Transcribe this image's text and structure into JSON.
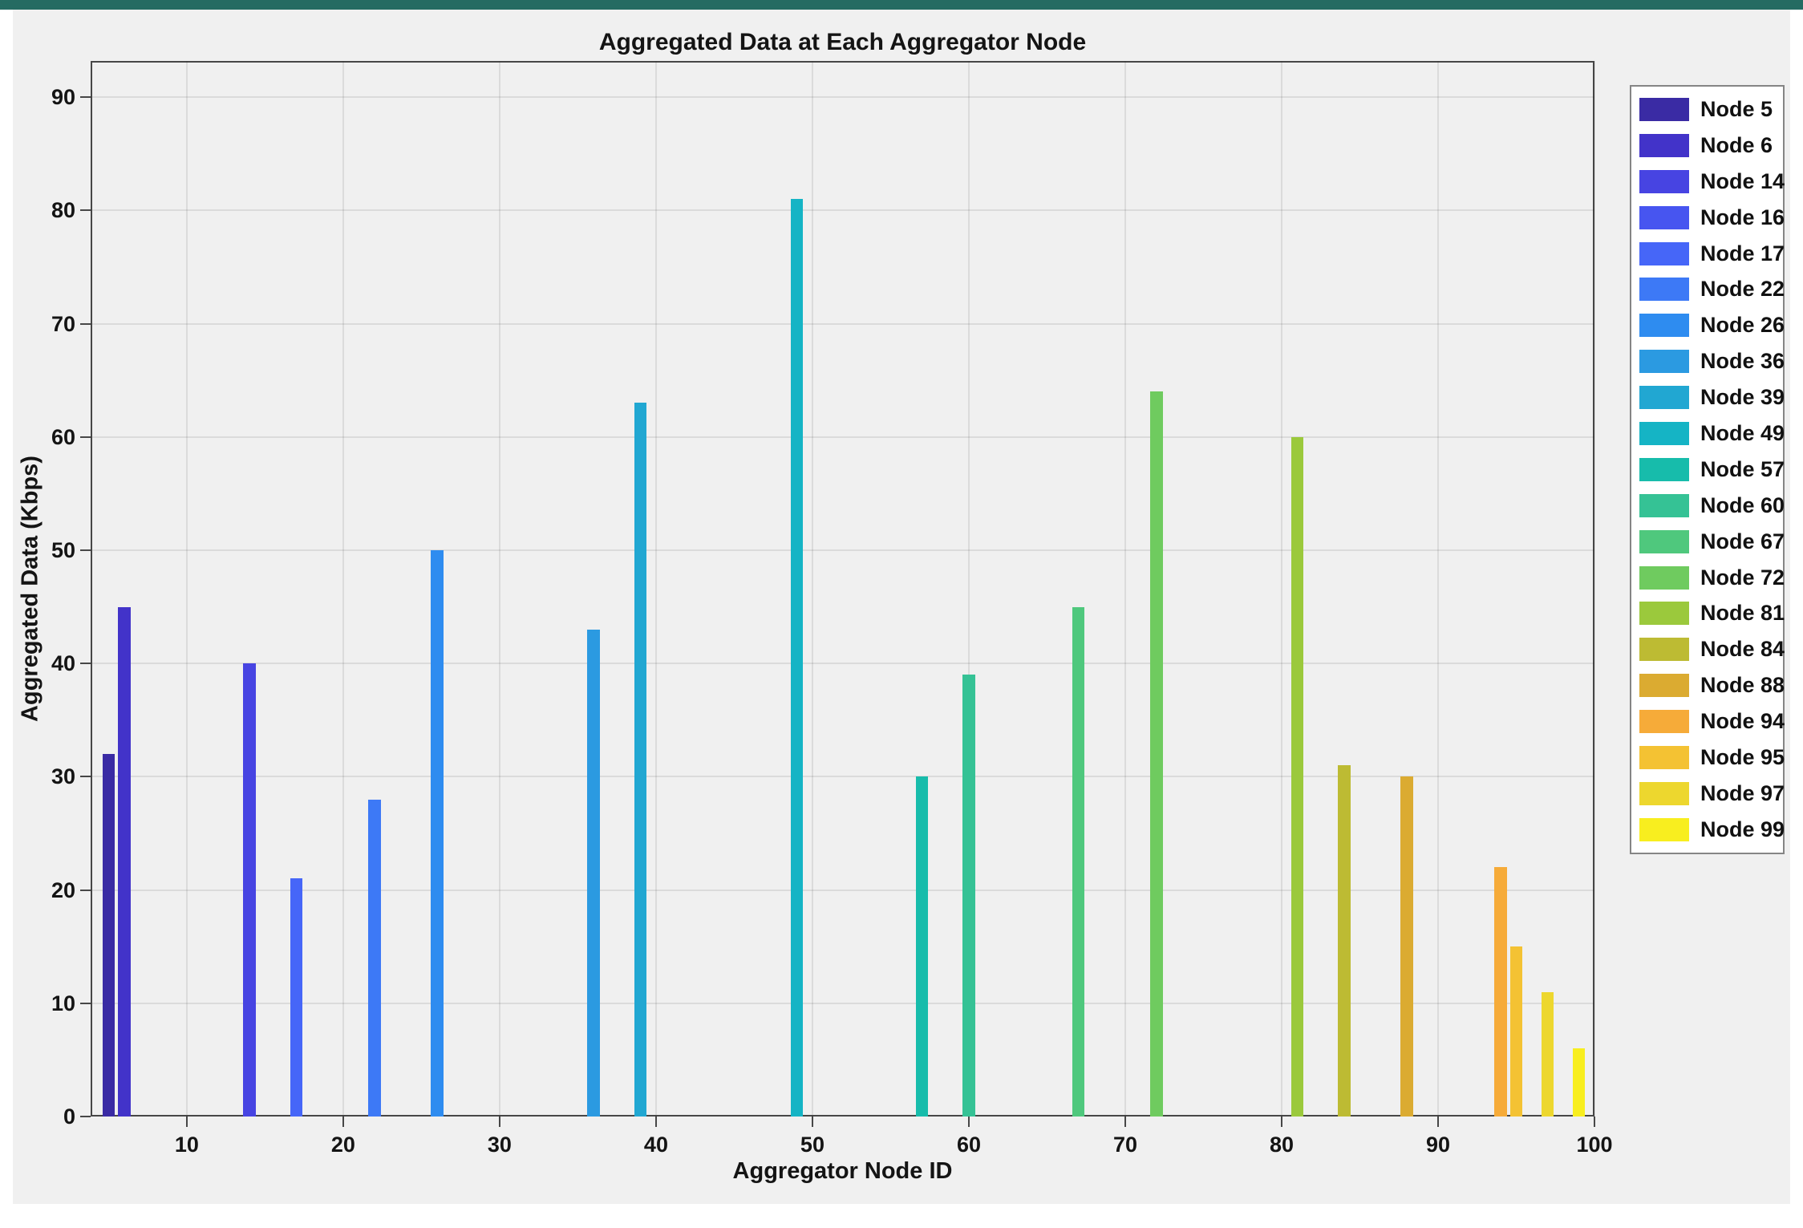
{
  "frame": {
    "top_bar_color": "#256B62",
    "page_bg": "#FFFFFF",
    "figure_bg": "#F0F0F0",
    "axis_color": "#474747",
    "text_color": "#141414",
    "legend_bg": "#FFFFFF",
    "legend_border": "#858585"
  },
  "chart_data": {
    "type": "bar",
    "title": "Aggregated Data at Each Aggregator Node",
    "xlabel": "Aggregator Node ID",
    "ylabel": "Aggregated Data (Kbps)",
    "xlim": [
      3.85,
      100
    ],
    "ylim": [
      0,
      93.2
    ],
    "xticks": [
      10,
      20,
      30,
      40,
      50,
      60,
      70,
      80,
      90,
      100
    ],
    "yticks": [
      0,
      10,
      20,
      30,
      40,
      50,
      60,
      70,
      80,
      90
    ],
    "grid": true,
    "bar_width_units": 0.8,
    "legend_position": "right-outside",
    "series": [
      {
        "label": "Node 5",
        "x": 5,
        "value": 32,
        "color": "#3A2BA4"
      },
      {
        "label": "Node 6",
        "x": 6,
        "value": 45,
        "color": "#4233C9"
      },
      {
        "label": "Node 14",
        "x": 14,
        "value": 40,
        "color": "#4744E2"
      },
      {
        "label": "Node 16",
        "x": 16,
        "value": null,
        "color": "#4755F0"
      },
      {
        "label": "Node 17",
        "x": 17,
        "value": 21,
        "color": "#4666F8"
      },
      {
        "label": "Node 22",
        "x": 22,
        "value": 28,
        "color": "#3D79F6"
      },
      {
        "label": "Node 26",
        "x": 26,
        "value": 50,
        "color": "#2E8CF0"
      },
      {
        "label": "Node 36",
        "x": 36,
        "value": 43,
        "color": "#2B9AE1"
      },
      {
        "label": "Node 39",
        "x": 39,
        "value": 63,
        "color": "#21A7D2"
      },
      {
        "label": "Node 49",
        "x": 49,
        "value": 81,
        "color": "#15B4C5"
      },
      {
        "label": "Node 57",
        "x": 57,
        "value": 30,
        "color": "#17BCAB"
      },
      {
        "label": "Node 60",
        "x": 60,
        "value": 39,
        "color": "#35C295"
      },
      {
        "label": "Node 67",
        "x": 67,
        "value": 45,
        "color": "#4FC87D"
      },
      {
        "label": "Node 72",
        "x": 72,
        "value": 64,
        "color": "#6FCB5F"
      },
      {
        "label": "Node 81",
        "x": 81,
        "value": 60,
        "color": "#9BC93C"
      },
      {
        "label": "Node 84",
        "x": 84,
        "value": 31,
        "color": "#BDBB33"
      },
      {
        "label": "Node 88",
        "x": 88,
        "value": 30,
        "color": "#DBAB31"
      },
      {
        "label": "Node 94",
        "x": 94,
        "value": 22,
        "color": "#F6AB39"
      },
      {
        "label": "Node 95",
        "x": 95,
        "value": 15,
        "color": "#F4C233"
      },
      {
        "label": "Node 97",
        "x": 97,
        "value": 11,
        "color": "#EDD72E"
      },
      {
        "label": "Node 99",
        "x": 99,
        "value": 6,
        "color": "#F8EE1F"
      }
    ]
  }
}
